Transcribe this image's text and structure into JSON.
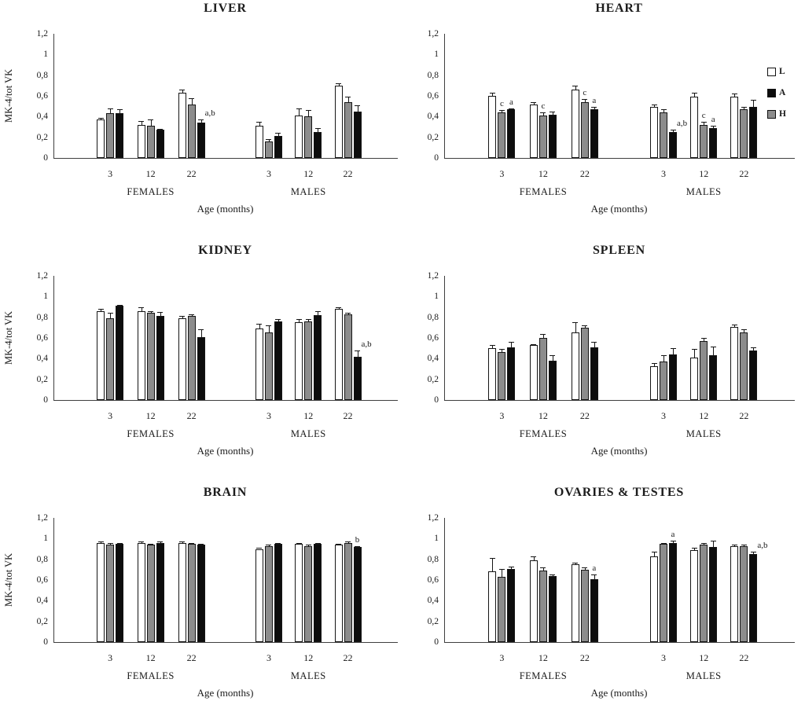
{
  "figure": {
    "y_axis_title": "MK-4/tot VK",
    "x_axis_title": "Age (months)",
    "y_ticks": [
      "1,2",
      "1",
      "0,8",
      "0,6",
      "0,4",
      "0,2",
      "0"
    ],
    "y_tick_values": [
      1.2,
      1.0,
      0.8,
      0.6,
      0.4,
      0.2,
      0
    ],
    "ylim": [
      0,
      1.2
    ],
    "group_labels": [
      "3",
      "12",
      "22",
      "3",
      "12",
      "22"
    ],
    "section_labels": [
      "FEMALES",
      "MALES"
    ],
    "bar_order_in_group": [
      "L",
      "H",
      "A"
    ],
    "legend": [
      {
        "label": "L",
        "color": "#ffffff"
      },
      {
        "label": "A",
        "color": "#0d0d0d"
      },
      {
        "label": "H",
        "color": "#8c8c8c"
      }
    ],
    "colors": {
      "L": "#ffffff",
      "A": "#0d0d0d",
      "H": "#8c8c8c",
      "bar_border": "#151515",
      "axis": "#3f3f3f",
      "text": "#1a1a1a"
    }
  },
  "chart_data": [
    {
      "type": "bar",
      "title": "LIVER",
      "ylabel": "MK-4/tot VK",
      "xlabel": "Age (months)",
      "ylim": [
        0,
        1.2
      ],
      "legend_position": "none",
      "groups": [
        {
          "section": "FEMALES",
          "age": "3",
          "bars": [
            {
              "series": "L",
              "value": 0.37,
              "err": 0.02
            },
            {
              "series": "H",
              "value": 0.43,
              "err": 0.05
            },
            {
              "series": "A",
              "value": 0.43,
              "err": 0.04
            }
          ]
        },
        {
          "section": "FEMALES",
          "age": "12",
          "bars": [
            {
              "series": "L",
              "value": 0.32,
              "err": 0.04
            },
            {
              "series": "H",
              "value": 0.31,
              "err": 0.06
            },
            {
              "series": "A",
              "value": 0.27,
              "err": 0.01
            }
          ]
        },
        {
          "section": "FEMALES",
          "age": "22",
          "bars": [
            {
              "series": "L",
              "value": 0.63,
              "err": 0.03
            },
            {
              "series": "H",
              "value": 0.52,
              "err": 0.06
            },
            {
              "series": "A",
              "value": 0.34,
              "err": 0.03,
              "note": "a,b"
            }
          ]
        },
        {
          "section": "MALES",
          "age": "3",
          "bars": [
            {
              "series": "L",
              "value": 0.31,
              "err": 0.04
            },
            {
              "series": "H",
              "value": 0.16,
              "err": 0.02
            },
            {
              "series": "A",
              "value": 0.21,
              "err": 0.03
            }
          ]
        },
        {
          "section": "MALES",
          "age": "12",
          "bars": [
            {
              "series": "L",
              "value": 0.41,
              "err": 0.07
            },
            {
              "series": "H",
              "value": 0.4,
              "err": 0.06
            },
            {
              "series": "A",
              "value": 0.25,
              "err": 0.04
            }
          ]
        },
        {
          "section": "MALES",
          "age": "22",
          "bars": [
            {
              "series": "L",
              "value": 0.7,
              "err": 0.02
            },
            {
              "series": "H",
              "value": 0.54,
              "err": 0.05
            },
            {
              "series": "A",
              "value": 0.45,
              "err": 0.06
            }
          ]
        }
      ]
    },
    {
      "type": "bar",
      "title": "HEART",
      "ylabel": "",
      "xlabel": "Age (months)",
      "ylim": [
        0,
        1.2
      ],
      "legend_position": "right",
      "groups": [
        {
          "section": "FEMALES",
          "age": "3",
          "bars": [
            {
              "series": "L",
              "value": 0.6,
              "err": 0.03
            },
            {
              "series": "H",
              "value": 0.44,
              "err": 0.02,
              "note": "c"
            },
            {
              "series": "A",
              "value": 0.47,
              "err": 0.01,
              "note": "a"
            }
          ]
        },
        {
          "section": "FEMALES",
          "age": "12",
          "bars": [
            {
              "series": "L",
              "value": 0.52,
              "err": 0.02
            },
            {
              "series": "H",
              "value": 0.41,
              "err": 0.03,
              "note": "c"
            },
            {
              "series": "A",
              "value": 0.42,
              "err": 0.03
            }
          ]
        },
        {
          "section": "FEMALES",
          "age": "22",
          "bars": [
            {
              "series": "L",
              "value": 0.66,
              "err": 0.04
            },
            {
              "series": "H",
              "value": 0.54,
              "err": 0.03,
              "note": "c"
            },
            {
              "series": "A",
              "value": 0.47,
              "err": 0.02,
              "note": "a"
            }
          ]
        },
        {
          "section": "MALES",
          "age": "3",
          "bars": [
            {
              "series": "L",
              "value": 0.49,
              "err": 0.03
            },
            {
              "series": "H",
              "value": 0.44,
              "err": 0.03
            },
            {
              "series": "A",
              "value": 0.25,
              "err": 0.02,
              "note": "a,b"
            }
          ]
        },
        {
          "section": "MALES",
          "age": "12",
          "bars": [
            {
              "series": "L",
              "value": 0.59,
              "err": 0.04
            },
            {
              "series": "H",
              "value": 0.32,
              "err": 0.03,
              "note": "c"
            },
            {
              "series": "A",
              "value": 0.29,
              "err": 0.02,
              "note": "a"
            }
          ]
        },
        {
          "section": "MALES",
          "age": "22",
          "bars": [
            {
              "series": "L",
              "value": 0.59,
              "err": 0.03
            },
            {
              "series": "H",
              "value": 0.47,
              "err": 0.02
            },
            {
              "series": "A",
              "value": 0.49,
              "err": 0.07
            }
          ]
        }
      ]
    },
    {
      "type": "bar",
      "title": "KIDNEY",
      "ylabel": "MK-4/tot VK",
      "xlabel": "Age (months)",
      "ylim": [
        0,
        1.2
      ],
      "legend_position": "none",
      "groups": [
        {
          "section": "FEMALES",
          "age": "3",
          "bars": [
            {
              "series": "L",
              "value": 0.86,
              "err": 0.02
            },
            {
              "series": "H",
              "value": 0.79,
              "err": 0.05
            },
            {
              "series": "A",
              "value": 0.91,
              "err": 0.01
            }
          ]
        },
        {
          "section": "FEMALES",
          "age": "12",
          "bars": [
            {
              "series": "L",
              "value": 0.86,
              "err": 0.04
            },
            {
              "series": "H",
              "value": 0.84,
              "err": 0.02
            },
            {
              "series": "A",
              "value": 0.81,
              "err": 0.04
            }
          ]
        },
        {
          "section": "FEMALES",
          "age": "22",
          "bars": [
            {
              "series": "L",
              "value": 0.79,
              "err": 0.02
            },
            {
              "series": "H",
              "value": 0.81,
              "err": 0.02
            },
            {
              "series": "A",
              "value": 0.61,
              "err": 0.07
            }
          ]
        },
        {
          "section": "MALES",
          "age": "3",
          "bars": [
            {
              "series": "L",
              "value": 0.69,
              "err": 0.05
            },
            {
              "series": "H",
              "value": 0.65,
              "err": 0.07
            },
            {
              "series": "A",
              "value": 0.76,
              "err": 0.02
            }
          ]
        },
        {
          "section": "MALES",
          "age": "12",
          "bars": [
            {
              "series": "L",
              "value": 0.75,
              "err": 0.03
            },
            {
              "series": "H",
              "value": 0.76,
              "err": 0.02
            },
            {
              "series": "A",
              "value": 0.82,
              "err": 0.04
            }
          ]
        },
        {
          "section": "MALES",
          "age": "22",
          "bars": [
            {
              "series": "L",
              "value": 0.88,
              "err": 0.02
            },
            {
              "series": "H",
              "value": 0.83,
              "err": 0.01
            },
            {
              "series": "A",
              "value": 0.42,
              "err": 0.06,
              "note": "a,b"
            }
          ]
        }
      ]
    },
    {
      "type": "bar",
      "title": "SPLEEN",
      "ylabel": "",
      "xlabel": "Age (months)",
      "ylim": [
        0,
        1.2
      ],
      "legend_position": "none",
      "groups": [
        {
          "section": "FEMALES",
          "age": "3",
          "bars": [
            {
              "series": "L",
              "value": 0.5,
              "err": 0.03
            },
            {
              "series": "H",
              "value": 0.46,
              "err": 0.03
            },
            {
              "series": "A",
              "value": 0.51,
              "err": 0.05
            }
          ]
        },
        {
          "section": "FEMALES",
          "age": "12",
          "bars": [
            {
              "series": "L",
              "value": 0.53,
              "err": 0.01
            },
            {
              "series": "H",
              "value": 0.6,
              "err": 0.04
            },
            {
              "series": "A",
              "value": 0.38,
              "err": 0.05
            }
          ]
        },
        {
          "section": "FEMALES",
          "age": "22",
          "bars": [
            {
              "series": "L",
              "value": 0.65,
              "err": 0.1
            },
            {
              "series": "H",
              "value": 0.7,
              "err": 0.02
            },
            {
              "series": "A",
              "value": 0.51,
              "err": 0.05
            }
          ]
        },
        {
          "section": "MALES",
          "age": "3",
          "bars": [
            {
              "series": "L",
              "value": 0.33,
              "err": 0.03
            },
            {
              "series": "H",
              "value": 0.37,
              "err": 0.06
            },
            {
              "series": "A",
              "value": 0.44,
              "err": 0.06
            }
          ]
        },
        {
          "section": "MALES",
          "age": "12",
          "bars": [
            {
              "series": "L",
              "value": 0.41,
              "err": 0.08
            },
            {
              "series": "H",
              "value": 0.57,
              "err": 0.03
            },
            {
              "series": "A",
              "value": 0.43,
              "err": 0.09
            }
          ]
        },
        {
          "section": "MALES",
          "age": "22",
          "bars": [
            {
              "series": "L",
              "value": 0.71,
              "err": 0.02
            },
            {
              "series": "H",
              "value": 0.65,
              "err": 0.03
            },
            {
              "series": "A",
              "value": 0.48,
              "err": 0.03
            }
          ]
        }
      ]
    },
    {
      "type": "bar",
      "title": "BRAIN",
      "ylabel": "MK-4/tot VK",
      "xlabel": "Age (months)",
      "ylim": [
        0,
        1.2
      ],
      "legend_position": "none",
      "groups": [
        {
          "section": "FEMALES",
          "age": "3",
          "bars": [
            {
              "series": "L",
              "value": 0.96,
              "err": 0.01
            },
            {
              "series": "H",
              "value": 0.94,
              "err": 0.02
            },
            {
              "series": "A",
              "value": 0.95,
              "err": 0.01
            }
          ]
        },
        {
          "section": "FEMALES",
          "age": "12",
          "bars": [
            {
              "series": "L",
              "value": 0.96,
              "err": 0.01
            },
            {
              "series": "H",
              "value": 0.94,
              "err": 0.01
            },
            {
              "series": "A",
              "value": 0.96,
              "err": 0.01
            }
          ]
        },
        {
          "section": "FEMALES",
          "age": "22",
          "bars": [
            {
              "series": "L",
              "value": 0.96,
              "err": 0.01
            },
            {
              "series": "H",
              "value": 0.95,
              "err": 0.01
            },
            {
              "series": "A",
              "value": 0.94,
              "err": 0.01
            }
          ]
        },
        {
          "section": "MALES",
          "age": "3",
          "bars": [
            {
              "series": "L",
              "value": 0.9,
              "err": 0.01
            },
            {
              "series": "H",
              "value": 0.93,
              "err": 0.01
            },
            {
              "series": "A",
              "value": 0.95,
              "err": 0.01
            }
          ]
        },
        {
          "section": "MALES",
          "age": "12",
          "bars": [
            {
              "series": "L",
              "value": 0.95,
              "err": 0.01
            },
            {
              "series": "H",
              "value": 0.93,
              "err": 0.01
            },
            {
              "series": "A",
              "value": 0.95,
              "err": 0.01
            }
          ]
        },
        {
          "section": "MALES",
          "age": "22",
          "bars": [
            {
              "series": "L",
              "value": 0.94,
              "err": 0.01
            },
            {
              "series": "H",
              "value": 0.96,
              "err": 0.01
            },
            {
              "series": "A",
              "value": 0.92,
              "err": 0.01,
              "note": "b"
            }
          ]
        }
      ]
    },
    {
      "type": "bar",
      "title": "OVARIES & TESTES",
      "ylabel": "",
      "xlabel": "Age (months)",
      "ylim": [
        0,
        1.2
      ],
      "legend_position": "none",
      "groups": [
        {
          "section": "FEMALES",
          "age": "3",
          "bars": [
            {
              "series": "L",
              "value": 0.68,
              "err": 0.13
            },
            {
              "series": "H",
              "value": 0.63,
              "err": 0.08
            },
            {
              "series": "A",
              "value": 0.71,
              "err": 0.02
            }
          ]
        },
        {
          "section": "FEMALES",
          "age": "12",
          "bars": [
            {
              "series": "L",
              "value": 0.79,
              "err": 0.04
            },
            {
              "series": "H",
              "value": 0.69,
              "err": 0.03
            },
            {
              "series": "A",
              "value": 0.64,
              "err": 0.01
            }
          ]
        },
        {
          "section": "FEMALES",
          "age": "22",
          "bars": [
            {
              "series": "L",
              "value": 0.75,
              "err": 0.02
            },
            {
              "series": "H",
              "value": 0.7,
              "err": 0.02
            },
            {
              "series": "A",
              "value": 0.61,
              "err": 0.04,
              "note": "a"
            }
          ]
        },
        {
          "section": "MALES",
          "age": "3",
          "bars": [
            {
              "series": "L",
              "value": 0.83,
              "err": 0.04
            },
            {
              "series": "H",
              "value": 0.95,
              "err": 0.01
            },
            {
              "series": "A",
              "value": 0.96,
              "err": 0.02,
              "note": "a"
            }
          ]
        },
        {
          "section": "MALES",
          "age": "12",
          "bars": [
            {
              "series": "L",
              "value": 0.89,
              "err": 0.02
            },
            {
              "series": "H",
              "value": 0.94,
              "err": 0.02
            },
            {
              "series": "A",
              "value": 0.92,
              "err": 0.06
            }
          ]
        },
        {
          "section": "MALES",
          "age": "22",
          "bars": [
            {
              "series": "L",
              "value": 0.93,
              "err": 0.01
            },
            {
              "series": "H",
              "value": 0.93,
              "err": 0.01
            },
            {
              "series": "A",
              "value": 0.85,
              "err": 0.02,
              "note": "a,b"
            }
          ]
        }
      ]
    }
  ]
}
